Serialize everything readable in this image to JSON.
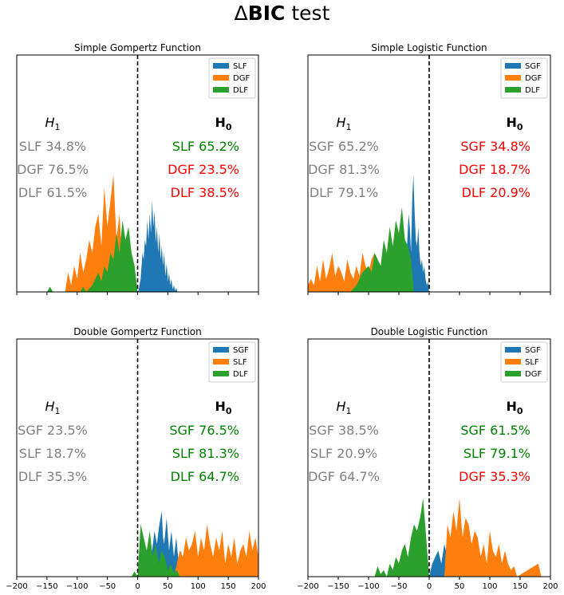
{
  "figure_title_prefix": "Δ",
  "figure_title_bold": "BIC",
  "figure_title_suffix": " test",
  "colors": {
    "blue": "#1f77b4",
    "orange": "#ff7f0e",
    "green": "#2ca02c",
    "grey": "#808080",
    "red": "#ff0000",
    "darkgreen": "#008000"
  },
  "chart_data": [
    {
      "type": "area",
      "title": "Simple Gompertz Function",
      "xlim": [
        -200,
        200
      ],
      "xticks": [
        "−200",
        "−150",
        "−100",
        "−50",
        "0",
        "50",
        "100",
        "150",
        "200"
      ],
      "show_tick_labels": false,
      "legend": [
        "SLF",
        "DGF",
        "DLF"
      ],
      "h1_label": "H",
      "h1_sub": "1",
      "h0_label": "H",
      "h0_sub": "0",
      "h1_rows": [
        "SLF 34.8%",
        "DGF 76.5%",
        "DLF 61.5%"
      ],
      "h0_rows": [
        "SLF 65.2%",
        "DGF 23.5%",
        "DLF 38.5%"
      ],
      "h0_colors": [
        "darkgreen",
        "red",
        "red"
      ],
      "series": [
        {
          "name": "SLF",
          "color": "blue",
          "x": [
            1,
            5,
            8,
            10,
            12,
            14,
            16,
            18,
            20,
            22,
            24,
            26,
            28,
            30,
            32,
            34,
            36,
            38,
            40,
            42,
            44,
            46,
            48,
            50,
            52,
            54,
            56,
            58,
            60,
            62,
            64,
            66
          ],
          "y": [
            0,
            0.1,
            0.3,
            0.25,
            0.4,
            0.35,
            0.55,
            0.4,
            0.6,
            0.45,
            0.7,
            0.5,
            0.62,
            0.38,
            0.5,
            0.3,
            0.45,
            0.25,
            0.35,
            0.2,
            0.3,
            0.12,
            0.22,
            0.08,
            0.15,
            0.05,
            0.1,
            0.02,
            0.05,
            0.01,
            0.03,
            0
          ]
        },
        {
          "name": "DGF",
          "color": "orange",
          "x": [
            -120,
            -115,
            -110,
            -105,
            -100,
            -95,
            -90,
            -85,
            -80,
            -75,
            -70,
            -65,
            -60,
            -55,
            -50,
            -45,
            -40,
            -35,
            -30,
            -25,
            -20
          ],
          "y": [
            0,
            0.15,
            0.05,
            0.2,
            0.1,
            0.3,
            0.15,
            0.25,
            0.4,
            0.3,
            0.5,
            0.6,
            0.35,
            0.8,
            0.5,
            0.7,
            0.9,
            0.4,
            0.6,
            0.2,
            0
          ]
        },
        {
          "name": "DLF",
          "color": "green",
          "x": [
            -150,
            -145,
            -140,
            -135,
            -130,
            -125,
            -120,
            -115,
            -110,
            -100,
            -95,
            -90,
            -85,
            -75,
            -70,
            -65,
            -60,
            -55,
            -50,
            -45,
            -40,
            -35,
            -30,
            -25,
            -20,
            -15,
            -10,
            -5,
            0
          ],
          "y": [
            0,
            0.04,
            0,
            0,
            0,
            0,
            0,
            0,
            0,
            0,
            0,
            0.04,
            0,
            0.05,
            0.1,
            0.15,
            0.08,
            0.2,
            0.15,
            0.3,
            0.25,
            0.45,
            0.3,
            0.55,
            0.4,
            0.5,
            0.3,
            0.2,
            0
          ]
        }
      ]
    },
    {
      "type": "area",
      "title": "Simple Logistic Function",
      "xlim": [
        -200,
        200
      ],
      "xticks": [
        "−200",
        "−150",
        "−100",
        "−50",
        "0",
        "50",
        "100",
        "150",
        "200"
      ],
      "show_tick_labels": false,
      "legend": [
        "SGF",
        "DGF",
        "DLF"
      ],
      "h1_label": "H",
      "h1_sub": "1",
      "h0_label": "H",
      "h0_sub": "0",
      "h1_rows": [
        "SGF 65.2%",
        "DGF 81.3%",
        "DLF 79.1%"
      ],
      "h0_rows": [
        "SGF 34.8%",
        "DGF 18.7%",
        "DLF 20.9%"
      ],
      "h0_colors": [
        "red",
        "red",
        "red"
      ],
      "series": [
        {
          "name": "SGF",
          "color": "blue",
          "x": [
            -40,
            -38,
            -36,
            -34,
            -32,
            -30,
            -28,
            -26,
            -24,
            -22,
            -20,
            -18,
            -16,
            -14,
            -12,
            -10,
            -8,
            -6,
            -4,
            -2,
            0
          ],
          "y": [
            0,
            0.2,
            0.4,
            0.6,
            0.5,
            0.3,
            0.7,
            0.9,
            0.6,
            0.4,
            0.35,
            0.5,
            0.3,
            0.2,
            0.25,
            0.15,
            0.2,
            0.1,
            0.05,
            0.08,
            0
          ]
        },
        {
          "name": "DGF",
          "color": "orange",
          "x": [
            -200,
            -195,
            -190,
            -185,
            -180,
            -175,
            -170,
            -165,
            -160,
            -155,
            -150,
            -145,
            -140,
            -135,
            -130,
            -125,
            -120,
            -115,
            -110,
            -105,
            -100,
            -95,
            -90,
            -85,
            -80,
            -75,
            -70,
            -65,
            -60,
            -55,
            -50,
            -45,
            -40
          ],
          "y": [
            0.05,
            0.1,
            0.05,
            0.2,
            0.08,
            0.25,
            0.1,
            0.18,
            0.3,
            0.12,
            0.2,
            0.15,
            0.08,
            0.25,
            0.15,
            0.1,
            0.2,
            0.12,
            0.3,
            0.2,
            0.15,
            0.25,
            0.3,
            0.2,
            0.15,
            0.35,
            0.25,
            0.4,
            0.3,
            0.45,
            0.35,
            0.55,
            0.2
          ]
        },
        {
          "name": "DLF",
          "color": "green",
          "x": [
            -130,
            -120,
            -110,
            -100,
            -95,
            -90,
            -85,
            -80,
            -75,
            -70,
            -65,
            -60,
            -55,
            -50,
            -45,
            -40,
            -35,
            -30,
            -25
          ],
          "y": [
            0,
            0.05,
            0.15,
            0.2,
            0.15,
            0.3,
            0.25,
            0.2,
            0.4,
            0.3,
            0.5,
            0.35,
            0.55,
            0.45,
            0.65,
            0.4,
            0.35,
            0.25,
            0
          ]
        }
      ]
    },
    {
      "type": "area",
      "title": "Double Gompertz Function",
      "xlim": [
        -200,
        200
      ],
      "xticks": [
        "−200",
        "−150",
        "−100",
        "−50",
        "0",
        "50",
        "100",
        "150",
        "200"
      ],
      "show_tick_labels": true,
      "legend": [
        "SGF",
        "SLF",
        "DLF"
      ],
      "h1_label": "H",
      "h1_sub": "1",
      "h0_label": "H",
      "h0_sub": "0",
      "h1_rows": [
        "SGF 23.5%",
        "SLF 18.7%",
        "DLF 35.3%"
      ],
      "h0_rows": [
        "SGF 76.5%",
        "SLF 81.3%",
        "DLF 64.7%"
      ],
      "h0_colors": [
        "darkgreen",
        "darkgreen",
        "darkgreen"
      ],
      "series": [
        {
          "name": "SGF",
          "color": "blue",
          "x": [
            20,
            24,
            28,
            32,
            36,
            40,
            42,
            44,
            48,
            52,
            56,
            60,
            64,
            68,
            72,
            76,
            80
          ],
          "y": [
            0,
            0.2,
            0.35,
            0.25,
            0.4,
            0.5,
            0.3,
            0.25,
            0.45,
            0.2,
            0.35,
            0.15,
            0.3,
            0.1,
            0.2,
            0.05,
            0
          ]
        },
        {
          "name": "SLF",
          "color": "orange",
          "x": [
            60,
            65,
            70,
            75,
            80,
            85,
            90,
            95,
            100,
            105,
            110,
            115,
            120,
            125,
            130,
            135,
            140,
            145,
            150,
            155,
            160,
            165,
            170,
            175,
            180,
            185,
            190,
            195,
            200
          ],
          "y": [
            0,
            0.1,
            0.2,
            0.15,
            0.3,
            0.2,
            0.25,
            0.35,
            0.15,
            0.3,
            0.2,
            0.4,
            0.25,
            0.15,
            0.3,
            0.2,
            0.35,
            0.1,
            0.25,
            0.15,
            0.3,
            0.1,
            0.2,
            0.25,
            0.15,
            0.35,
            0.2,
            0.3,
            0.15
          ]
        },
        {
          "name": "DLF",
          "color": "green",
          "x": [
            -10,
            -5,
            0,
            5,
            10,
            15,
            20,
            25,
            30,
            35,
            40,
            45,
            50,
            55,
            60,
            65,
            70
          ],
          "y": [
            0,
            0.04,
            0,
            0.4,
            0.3,
            0.2,
            0.35,
            0.15,
            0.25,
            0.1,
            0.2,
            0.15,
            0.05,
            0.1,
            0.03,
            0.05,
            0
          ]
        }
      ]
    },
    {
      "type": "area",
      "title": "Double Logistic Function",
      "xlim": [
        -200,
        200
      ],
      "xticks": [
        "−200",
        "−150",
        "−100",
        "−50",
        "0",
        "50",
        "100",
        "150",
        "200"
      ],
      "show_tick_labels": true,
      "legend": [
        "SGF",
        "SLF",
        "DGF"
      ],
      "h1_label": "H",
      "h1_sub": "1",
      "h0_label": "H",
      "h0_sub": "0",
      "h1_rows": [
        "SGF 38.5%",
        "SLF 20.9%",
        "DGF 64.7%"
      ],
      "h0_rows": [
        "SGF 61.5%",
        "SLF 79.1%",
        "DGF 35.3%"
      ],
      "h0_colors": [
        "darkgreen",
        "darkgreen",
        "red"
      ],
      "series": [
        {
          "name": "SGF",
          "color": "blue",
          "x": [
            0,
            5,
            10,
            15,
            20,
            25,
            30,
            35,
            135,
            140,
            145
          ],
          "y": [
            0,
            0.1,
            0.15,
            0.2,
            0.1,
            0.25,
            0.15,
            0,
            0,
            0.03,
            0
          ]
        },
        {
          "name": "SLF",
          "color": "orange",
          "x": [
            25,
            30,
            35,
            40,
            45,
            50,
            55,
            60,
            65,
            70,
            75,
            80,
            85,
            90,
            95,
            100,
            105,
            110,
            115,
            120,
            125,
            130,
            135,
            140,
            145,
            180,
            185
          ],
          "y": [
            0,
            0.4,
            0.3,
            0.5,
            0.35,
            0.6,
            0.3,
            0.45,
            0.4,
            0.25,
            0.35,
            0.3,
            0.15,
            0.25,
            0.1,
            0.35,
            0.2,
            0.15,
            0.25,
            0.1,
            0.2,
            0.1,
            0.05,
            0.08,
            0,
            0.1,
            0
          ]
        },
        {
          "name": "DGF",
          "color": "green",
          "x": [
            -90,
            -85,
            -80,
            -75,
            -70,
            -65,
            -60,
            -55,
            -50,
            -45,
            -40,
            -35,
            -30,
            -25,
            -20,
            -15,
            -10,
            -5,
            0
          ],
          "y": [
            0,
            0.08,
            0.02,
            0.05,
            0,
            0.1,
            0.05,
            0.15,
            0.1,
            0.2,
            0.25,
            0.15,
            0.3,
            0.4,
            0.35,
            0.45,
            0.6,
            0.3,
            0
          ]
        }
      ]
    }
  ]
}
